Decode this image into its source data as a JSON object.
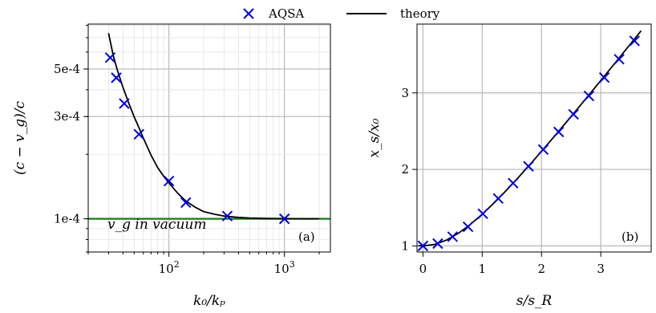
{
  "legend": {
    "position": "top-center",
    "items": [
      {
        "label": "AQSA",
        "marker": "x",
        "color": "#0000dd"
      },
      {
        "label": "theory",
        "marker": "line",
        "color": "#000000"
      }
    ]
  },
  "chart_data": [
    {
      "type": "scatter",
      "panel_label": "(a)",
      "xlabel": "k₀/kₚ",
      "ylabel": "(c − v_g)/c",
      "xscale": "log",
      "yscale": "log",
      "xlim": [
        20,
        2500
      ],
      "ylim": [
        7e-05,
        0.00081
      ],
      "x_ticks": [
        {
          "v": 100,
          "label": "10^2"
        },
        {
          "v": 1000,
          "label": "10^3"
        }
      ],
      "y_ticks": [
        {
          "v": 0.0001,
          "label": "1e-4"
        },
        {
          "v": 0.0003,
          "label": "3e-4"
        },
        {
          "v": 0.0005,
          "label": "5e-4"
        }
      ],
      "grid": true,
      "annotation": "v_g in vacuum",
      "hline": {
        "y": 0.0001,
        "color": "#1a7a1a",
        "name": "v_g in vacuum"
      },
      "series": [
        {
          "name": "AQSA",
          "marker": "x",
          "color": "#0000dd",
          "x": [
            31,
            35,
            41,
            55,
            100,
            140,
            320,
            1000
          ],
          "y": [
            0.000565,
            0.000455,
            0.000345,
            0.000248,
            0.00015,
            0.000119,
            0.000103,
            0.0001
          ]
        },
        {
          "name": "theory",
          "marker": "line",
          "color": "#000000",
          "x": [
            30,
            33,
            36,
            40,
            45,
            50,
            55,
            60,
            70,
            80,
            90,
            100,
            120,
            140,
            170,
            200,
            250,
            300,
            400,
            500,
            700,
            1000,
            1500,
            2000
          ],
          "y": [
            0.000735,
            0.000575,
            0.000488,
            0.00041,
            0.000345,
            0.000299,
            0.000266,
            0.000238,
            0.000198,
            0.000173,
            0.000158,
            0.000147,
            0.000131,
            0.000121,
            0.000113,
            0.000108,
            0.000105,
            0.000103,
            0.0001015,
            0.0001008,
            0.0001004,
            0.0001002,
            0.0001,
            0.0001
          ]
        }
      ]
    },
    {
      "type": "scatter",
      "panel_label": "(b)",
      "xlabel": "s/s_R",
      "ylabel": "x_s/x₀",
      "xlim": [
        -0.1,
        3.85
      ],
      "ylim": [
        0.92,
        3.9
      ],
      "x_ticks": [
        {
          "v": 0,
          "label": "0"
        },
        {
          "v": 1,
          "label": "1"
        },
        {
          "v": 2,
          "label": "2"
        },
        {
          "v": 3,
          "label": "3"
        }
      ],
      "y_ticks": [
        {
          "v": 1,
          "label": "1"
        },
        {
          "v": 2,
          "label": "2"
        },
        {
          "v": 3,
          "label": "3"
        }
      ],
      "grid": true,
      "series": [
        {
          "name": "AQSA",
          "marker": "x",
          "color": "#0000dd",
          "x": [
            0,
            0.25,
            0.5,
            0.76,
            1.01,
            1.27,
            1.52,
            1.78,
            2.03,
            2.29,
            2.54,
            2.8,
            3.06,
            3.31,
            3.57
          ],
          "y": [
            1.0,
            1.03,
            1.12,
            1.25,
            1.42,
            1.62,
            1.82,
            2.04,
            2.26,
            2.49,
            2.72,
            2.96,
            3.2,
            3.44,
            3.68
          ]
        },
        {
          "name": "theory",
          "marker": "line",
          "color": "#000000",
          "x": [
            -0.08,
            0,
            0.2,
            0.4,
            0.6,
            0.8,
            1.0,
            1.2,
            1.4,
            1.6,
            1.8,
            2.0,
            2.2,
            2.4,
            2.6,
            2.8,
            3.0,
            3.2,
            3.4,
            3.6,
            3.68
          ],
          "y": [
            1.003,
            1.0,
            1.02,
            1.077,
            1.166,
            1.281,
            1.414,
            1.562,
            1.72,
            1.887,
            2.059,
            2.236,
            2.417,
            2.6,
            2.786,
            2.973,
            3.162,
            3.353,
            3.544,
            3.736,
            3.813
          ]
        }
      ]
    }
  ]
}
